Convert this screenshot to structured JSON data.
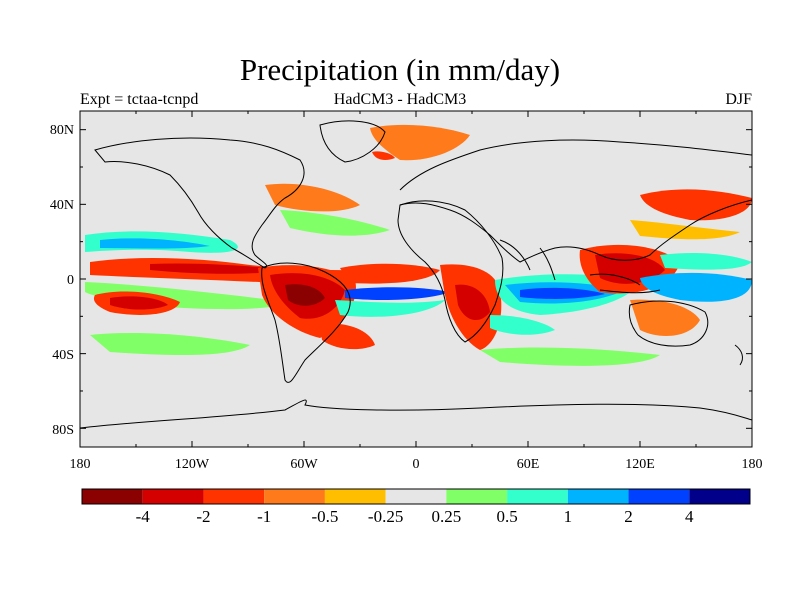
{
  "title": "Precipitation (in mm/day)",
  "subtitle_left": "Expt = tctaa-tcnpd",
  "subtitle_center": "HadCM3 - HadCM3",
  "subtitle_right": "DJF",
  "map": {
    "ocean_color": "#e6e6e6",
    "coastline_color": "#000000",
    "lat_ticks": [
      "80N",
      "40N",
      "0",
      "40S",
      "80S"
    ],
    "lon_ticks": [
      "180",
      "120W",
      "60W",
      "0",
      "60E",
      "120E",
      "180"
    ]
  },
  "colorbar": {
    "colors": [
      "#8b0000",
      "#d40000",
      "#ff3300",
      "#ff7a1a",
      "#ffbf00",
      "#e6e6e6",
      "#80ff66",
      "#33ffcc",
      "#00b3ff",
      "#0040ff",
      "#00008b"
    ],
    "labels": [
      "-4",
      "-2",
      "-1",
      "-0.5",
      "-0.25",
      "0.25",
      "0.5",
      "1",
      "2",
      "4"
    ]
  }
}
